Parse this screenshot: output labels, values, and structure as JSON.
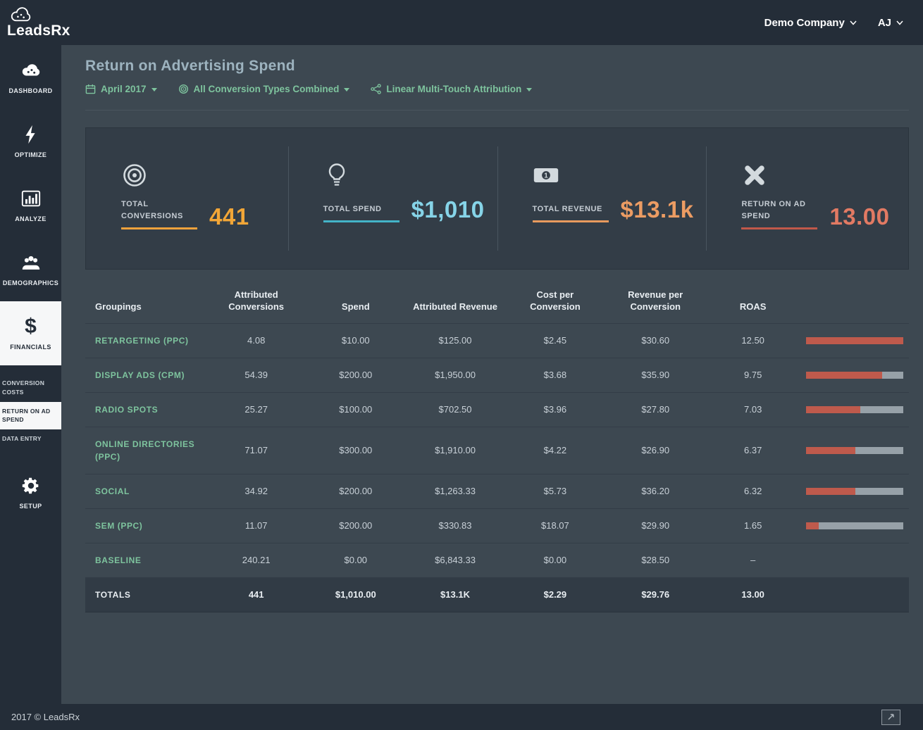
{
  "header": {
    "logo_text": "LeadsRx",
    "company": "Demo Company",
    "user_initials": "AJ"
  },
  "sidebar": {
    "items": [
      {
        "label": "DASHBOARD"
      },
      {
        "label": "OPTIMIZE"
      },
      {
        "label": "ANALYZE"
      },
      {
        "label": "DEMOGRAPHICS"
      },
      {
        "label": "FINANCIALS"
      }
    ],
    "sub_items": [
      {
        "label": "CONVERSION COSTS"
      },
      {
        "label": "RETURN ON AD SPEND"
      },
      {
        "label": "DATA ENTRY"
      }
    ],
    "setup_label": "SETUP"
  },
  "page": {
    "title": "Return on Advertising Spend"
  },
  "filters": [
    {
      "label": "April 2017"
    },
    {
      "label": "All Conversion Types Combined"
    },
    {
      "label": "Linear Multi-Touch Attribution"
    }
  ],
  "kpis": [
    {
      "label": "TOTAL CONVERSIONS",
      "value": "441",
      "accent": "#f0a23c",
      "value_color": "#f2a637"
    },
    {
      "label": "TOTAL SPEND",
      "value": "$1,010",
      "accent": "#43b4c8",
      "value_color": "#86d4e8"
    },
    {
      "label": "TOTAL REVENUE",
      "value": "$13.1k",
      "accent": "#e89a5e",
      "value_color": "#ec9c63"
    },
    {
      "label": "RETURN ON AD SPEND",
      "value": "13.00",
      "accent": "#c1584a",
      "value_color": "#e27a63"
    }
  ],
  "table": {
    "headers": [
      "Groupings",
      "Attributed Conversions",
      "Spend",
      "Attributed Revenue",
      "Cost per Conversion",
      "Revenue per Conversion",
      "ROAS"
    ],
    "rows": [
      {
        "grouping": "Retargeting (PPC)",
        "attributed_conversions": "4.08",
        "spend": "$10.00",
        "attributed_revenue": "$125.00",
        "cost_per_conversion": "$2.45",
        "revenue_per_conversion": "$30.60",
        "roas": "12.50",
        "bar_pct": 100
      },
      {
        "grouping": "Display Ads (CPM)",
        "attributed_conversions": "54.39",
        "spend": "$200.00",
        "attributed_revenue": "$1,950.00",
        "cost_per_conversion": "$3.68",
        "revenue_per_conversion": "$35.90",
        "roas": "9.75",
        "bar_pct": 78
      },
      {
        "grouping": "Radio Spots",
        "attributed_conversions": "25.27",
        "spend": "$100.00",
        "attributed_revenue": "$702.50",
        "cost_per_conversion": "$3.96",
        "revenue_per_conversion": "$27.80",
        "roas": "7.03",
        "bar_pct": 56
      },
      {
        "grouping": "Online Directories (PPC)",
        "attributed_conversions": "71.07",
        "spend": "$300.00",
        "attributed_revenue": "$1,910.00",
        "cost_per_conversion": "$4.22",
        "revenue_per_conversion": "$26.90",
        "roas": "6.37",
        "bar_pct": 51
      },
      {
        "grouping": "Social",
        "attributed_conversions": "34.92",
        "spend": "$200.00",
        "attributed_revenue": "$1,263.33",
        "cost_per_conversion": "$5.73",
        "revenue_per_conversion": "$36.20",
        "roas": "6.32",
        "bar_pct": 51
      },
      {
        "grouping": "SEM (PPC)",
        "attributed_conversions": "11.07",
        "spend": "$200.00",
        "attributed_revenue": "$330.83",
        "cost_per_conversion": "$18.07",
        "revenue_per_conversion": "$29.90",
        "roas": "1.65",
        "bar_pct": 13
      },
      {
        "grouping": "Baseline",
        "attributed_conversions": "240.21",
        "spend": "$0.00",
        "attributed_revenue": "$6,843.33",
        "cost_per_conversion": "$0.00",
        "revenue_per_conversion": "$28.50",
        "roas": "–",
        "bar_pct": null
      },
      {
        "grouping": "Totals",
        "attributed_conversions": "441",
        "spend": "$1,010.00",
        "attributed_revenue": "$13.1K",
        "cost_per_conversion": "$2.29",
        "revenue_per_conversion": "$29.76",
        "roas": "13.00",
        "bar_pct": null,
        "is_total": true
      }
    ]
  },
  "footer": {
    "copyright": "2017 © LeadsRx"
  },
  "colors": {
    "bar_fill": "#bf5a4c",
    "bar_track": "#97a1a8",
    "accent_teal": "#7ec49e",
    "dark_chrome": "#242d38",
    "panel": "#333d47"
  }
}
